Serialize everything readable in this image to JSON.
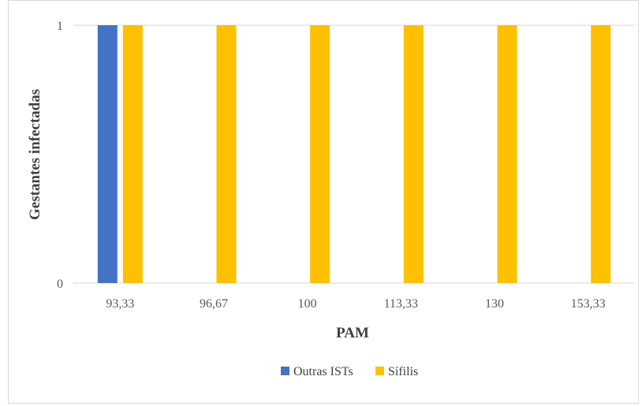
{
  "chart_data": {
    "type": "bar",
    "categories": [
      "93,33",
      "96,67",
      "100",
      "113,33",
      "130",
      "153,33"
    ],
    "series": [
      {
        "name": "Outras ISTs",
        "values": [
          1,
          0,
          0,
          0,
          0,
          0
        ],
        "color": "#4472c4"
      },
      {
        "name": "Sífilis",
        "values": [
          1,
          1,
          1,
          1,
          1,
          1
        ],
        "color": "#ffc000"
      }
    ],
    "title": "",
    "xlabel": "PAM",
    "ylabel": "Gestantes infectadas",
    "ylim": [
      0,
      1
    ],
    "yticks": [
      "0",
      "1"
    ],
    "grid": true,
    "legend_position": "bottom"
  }
}
